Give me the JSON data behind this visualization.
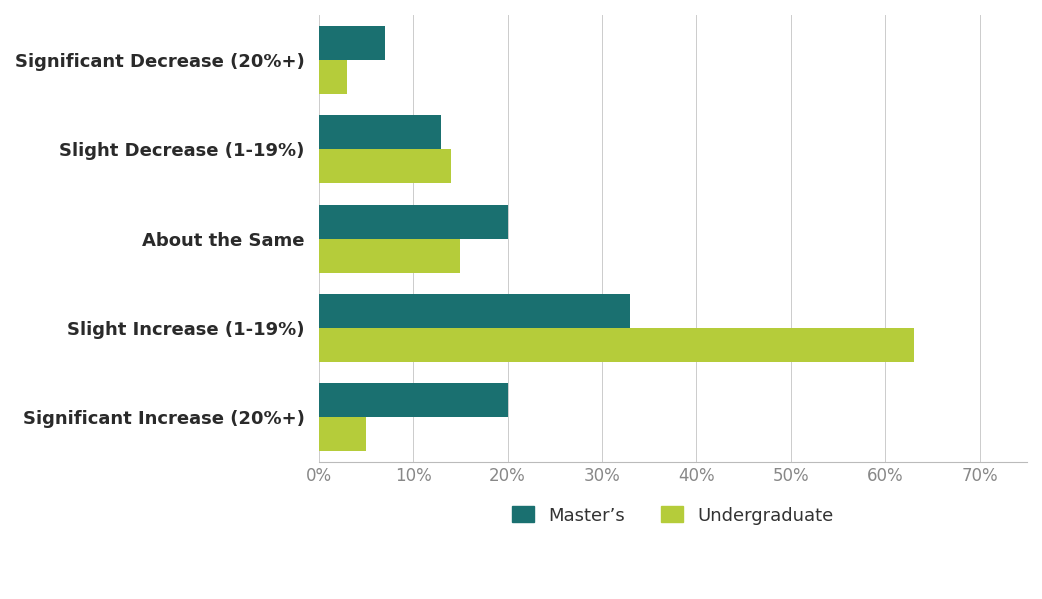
{
  "categories": [
    "Significant Decrease (20%+)",
    "Slight Decrease (1-19%)",
    "About the Same",
    "Slight Increase (1-19%)",
    "Significant Increase (20%+)"
  ],
  "masters": [
    7,
    13,
    20,
    33,
    20
  ],
  "undergraduate": [
    3,
    14,
    15,
    63,
    5
  ],
  "masters_color": "#1a7070",
  "undergraduate_color": "#b5cc3a",
  "bar_height": 0.38,
  "xlim": [
    0,
    75
  ],
  "xticks": [
    0,
    10,
    20,
    30,
    40,
    50,
    60,
    70
  ],
  "xtick_labels": [
    "0%",
    "10%",
    "20%",
    "30%",
    "40%",
    "50%",
    "60%",
    "70%"
  ],
  "legend_masters": "Master’s",
  "legend_undergraduate": "Undergraduate",
  "background_color": "#ffffff",
  "label_fontsize": 13,
  "tick_fontsize": 12,
  "legend_fontsize": 13
}
